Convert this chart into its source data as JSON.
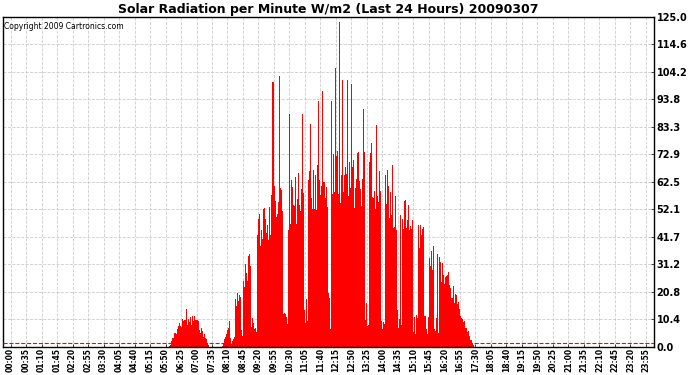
{
  "title": "Solar Radiation per Minute W/m2 (Last 24 Hours) 20090307",
  "copyright": "Copyright 2009 Cartronics.com",
  "bar_color": "#ff0000",
  "background_color": "#ffffff",
  "grid_color": "#c0c0c0",
  "yticks": [
    0.0,
    10.4,
    20.8,
    31.2,
    41.7,
    52.1,
    62.5,
    72.9,
    83.3,
    93.8,
    104.2,
    114.6,
    125.0
  ],
  "ymin": 0.0,
  "ymax": 125.0,
  "xtick_labels": [
    "00:00",
    "00:35",
    "01:10",
    "01:45",
    "02:20",
    "02:55",
    "03:30",
    "04:05",
    "04:40",
    "05:15",
    "05:50",
    "06:25",
    "07:00",
    "07:35",
    "08:10",
    "08:45",
    "09:20",
    "09:55",
    "10:30",
    "11:05",
    "11:40",
    "12:15",
    "12:50",
    "13:25",
    "14:00",
    "14:35",
    "15:10",
    "15:45",
    "16:20",
    "16:55",
    "17:30",
    "18:05",
    "18:40",
    "19:15",
    "19:50",
    "20:25",
    "21:00",
    "21:35",
    "22:10",
    "22:45",
    "23:20",
    "23:55"
  ],
  "baseline_color": "#ff0000",
  "n_points": 1440,
  "figwidth": 6.9,
  "figheight": 3.75,
  "dpi": 100
}
